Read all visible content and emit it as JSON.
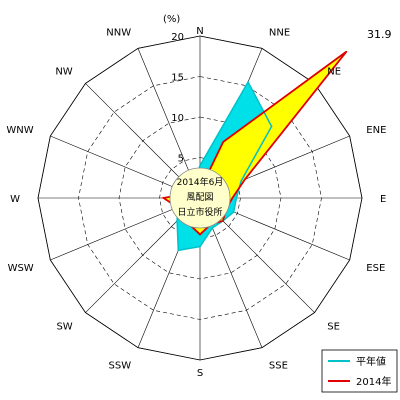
{
  "chart_data": {
    "type": "radar",
    "unit": "(%)",
    "directions": [
      "N",
      "NNE",
      "NE",
      "ENE",
      "E",
      "ESE",
      "SE",
      "SSE",
      "S",
      "SSW",
      "SW",
      "WSW",
      "W",
      "WNW",
      "NW",
      "NNW"
    ],
    "rlim": [
      0,
      20
    ],
    "ring_ticks": [
      "0",
      "5",
      "10",
      "15",
      "20"
    ],
    "max_label": "31.9",
    "center_text": [
      "2014年6月",
      "風配図",
      "日立市役所"
    ],
    "series": [
      {
        "name": "平年値",
        "color": "#00c0c8",
        "values": [
          4.0,
          15.5,
          12.5,
          5.5,
          4.5,
          4.5,
          4.0,
          4.0,
          6.0,
          7.0,
          4.0,
          3.0,
          2.0,
          1.5,
          1.5,
          2.0
        ]
      },
      {
        "name": "2014年",
        "color": "#e00000",
        "values": [
          1.0,
          7.5,
          31.9,
          6.0,
          4.0,
          3.5,
          4.0,
          3.5,
          4.5,
          3.5,
          2.5,
          3.0,
          4.5,
          1.5,
          2.5,
          1.5
        ]
      }
    ],
    "grid": true,
    "legend_position": "bottom-right"
  },
  "legend": {
    "item_normal": "平年値",
    "item_2014": "2014年"
  }
}
